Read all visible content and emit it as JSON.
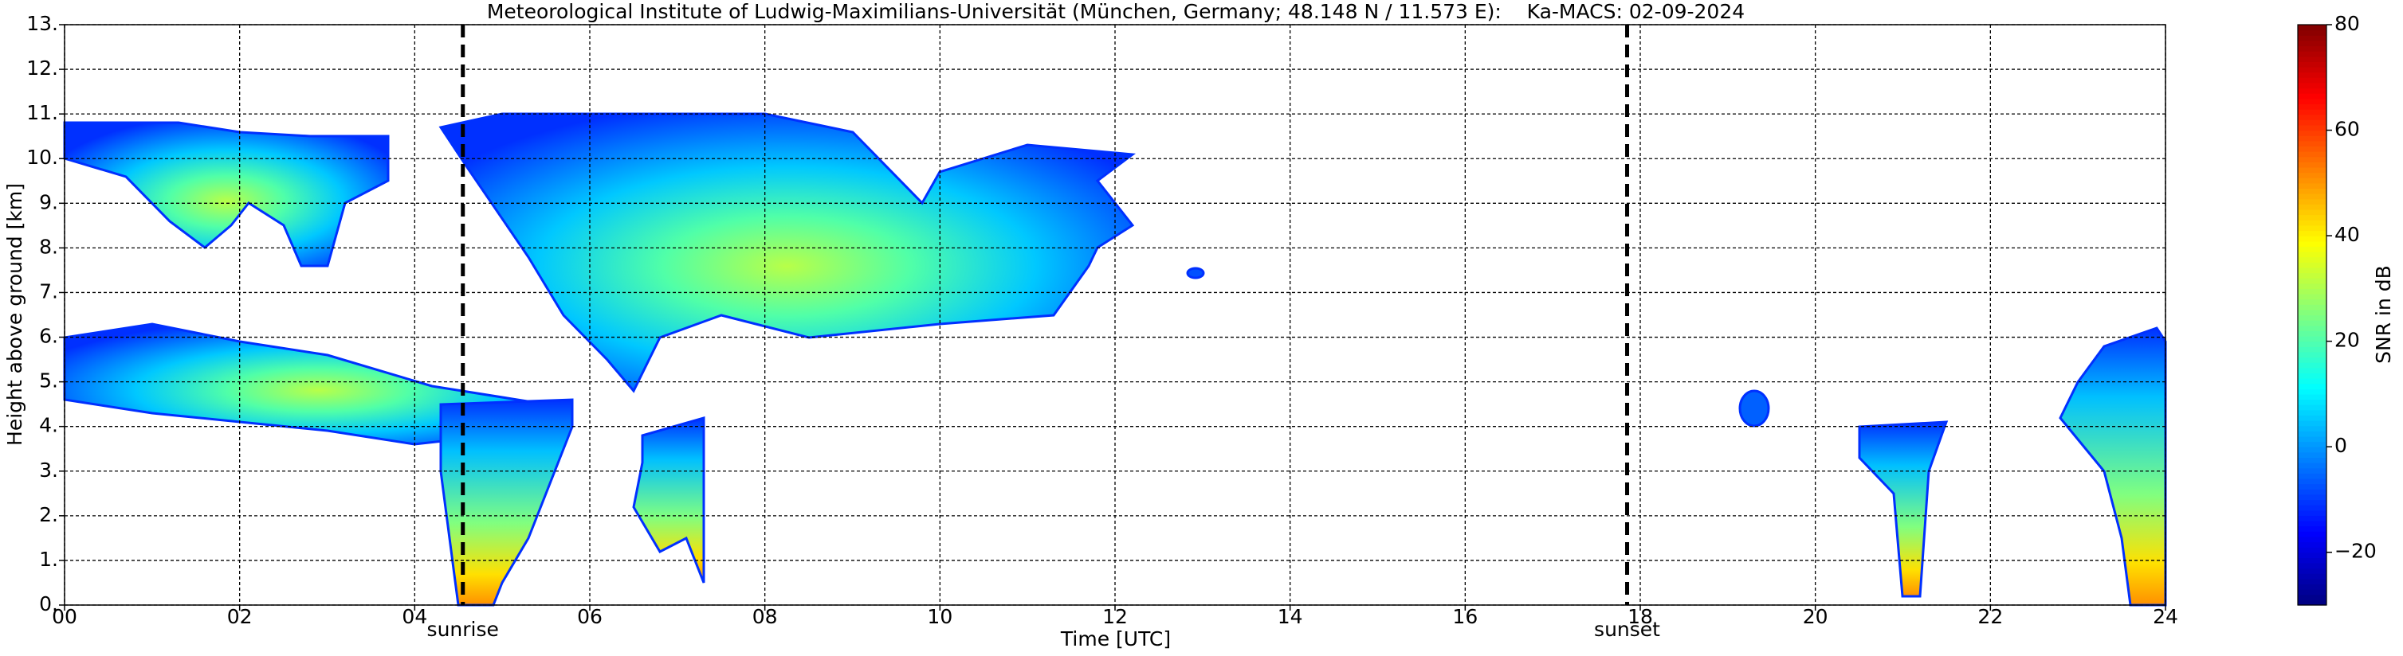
{
  "chart_data": {
    "type": "radar-time-height",
    "title": "Meteorological Institute of Ludwig-Maximilians-Universität (München, Germany; 48.148 N / 11.573 E):    Ka-MACS: 02-09-2024",
    "xlabel": "Time [UTC]",
    "ylabel": "Height above ground [km]",
    "xlim": [
      0,
      24
    ],
    "xticks": [
      {
        "value": 0,
        "label": "00"
      },
      {
        "value": 2,
        "label": "02"
      },
      {
        "value": 4,
        "label": "04"
      },
      {
        "value": 6,
        "label": "06"
      },
      {
        "value": 8,
        "label": "08"
      },
      {
        "value": 10,
        "label": "10"
      },
      {
        "value": 12,
        "label": "12"
      },
      {
        "value": 14,
        "label": "14"
      },
      {
        "value": 16,
        "label": "16"
      },
      {
        "value": 18,
        "label": "18"
      },
      {
        "value": 20,
        "label": "20"
      },
      {
        "value": 22,
        "label": "22"
      },
      24
    ],
    "ylim": [
      0,
      13
    ],
    "yticks": [
      {
        "value": 0,
        "label": "0."
      },
      {
        "value": 1,
        "label": "1."
      },
      {
        "value": 2,
        "label": "2."
      },
      {
        "value": 3,
        "label": "3."
      },
      {
        "value": 4,
        "label": "4."
      },
      {
        "value": 5,
        "label": "5."
      },
      {
        "value": 6,
        "label": "6."
      },
      {
        "value": 7,
        "label": "7."
      },
      {
        "value": 8,
        "label": "8."
      },
      {
        "value": 9,
        "label": "9."
      },
      {
        "value": 10,
        "label": "10."
      },
      {
        "value": 11,
        "label": "11."
      },
      {
        "value": 12,
        "label": "12."
      },
      {
        "value": 13,
        "label": "13."
      }
    ],
    "grid": true,
    "annotations": [
      {
        "x": 4.55,
        "label": "sunrise"
      },
      {
        "x": 17.85,
        "label": "sunset"
      }
    ],
    "colorbar": {
      "label": "SNR in dB",
      "lim": [
        -30,
        80
      ],
      "ticks": [
        {
          "value": -20,
          "label": "−20"
        },
        0,
        20,
        40,
        60,
        80
      ],
      "colormap": "jet"
    }
  }
}
